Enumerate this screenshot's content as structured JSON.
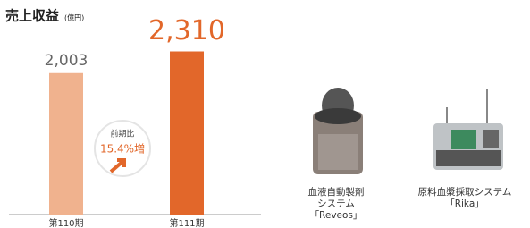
{
  "chart_data": {
    "type": "bar",
    "title": "売上収益",
    "unit": "(億円)",
    "categories": [
      "第110期",
      "第111期"
    ],
    "values": [
      2003,
      2310
    ],
    "value_labels": [
      "2,003",
      "2,310"
    ],
    "colors": [
      "#f0b28e",
      "#e2672a"
    ],
    "ylim": [
      0,
      3000
    ],
    "annotation": {
      "label": "前期比",
      "value": "15.4%増"
    }
  },
  "products": [
    {
      "caption": [
        "血液自動製剤",
        "システム",
        "「Reveos」"
      ]
    },
    {
      "caption": [
        "原料血漿採取システム",
        "「Rika」"
      ]
    }
  ]
}
